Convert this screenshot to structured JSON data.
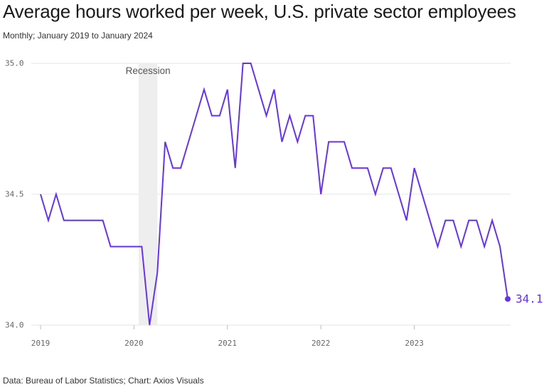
{
  "header": {
    "title": "Average hours worked per week, U.S. private sector employees",
    "subtitle": "Monthly; January 2019 to January 2024"
  },
  "footer": {
    "source": "Data: Bureau of Labor Statistics; Chart: Axios Visuals"
  },
  "colors": {
    "line": "#6533ee",
    "grid": "#e4e4e4",
    "recession_band": "#eeeeee",
    "tick_text": "#666666"
  },
  "chart_data": {
    "type": "line",
    "series": [
      {
        "values": [
          34.5,
          34.4,
          34.5,
          34.4,
          34.4,
          34.4,
          34.4,
          34.4,
          34.4,
          34.3,
          34.3,
          34.3,
          34.3,
          34.3,
          34.0,
          34.2,
          34.7,
          34.6,
          34.6,
          34.7,
          34.8,
          34.9,
          34.8,
          34.8,
          34.9,
          34.6,
          35.0,
          35.0,
          34.9,
          34.8,
          34.9,
          34.7,
          34.8,
          34.7,
          34.8,
          34.8,
          34.5,
          34.7,
          34.7,
          34.7,
          34.6,
          34.6,
          34.6,
          34.5,
          34.6,
          34.6,
          34.5,
          34.4,
          34.6,
          34.5,
          34.4,
          34.3,
          34.4,
          34.4,
          34.3,
          34.4,
          34.4,
          34.3,
          34.4,
          34.3,
          34.1
        ]
      }
    ],
    "x_start": "January 2019",
    "x_ticks": [
      "2019",
      "2020",
      "2021",
      "2022",
      "2023"
    ],
    "y_ticks": [
      "34.0",
      "34.5",
      "35.0"
    ],
    "ylim": [
      34.0,
      35.0
    ],
    "grid": "horizontal",
    "annotations": {
      "recession_label": "Recession",
      "recession_span": [
        "February 2020",
        "April 2020"
      ],
      "end_value_label": "34.1"
    }
  }
}
